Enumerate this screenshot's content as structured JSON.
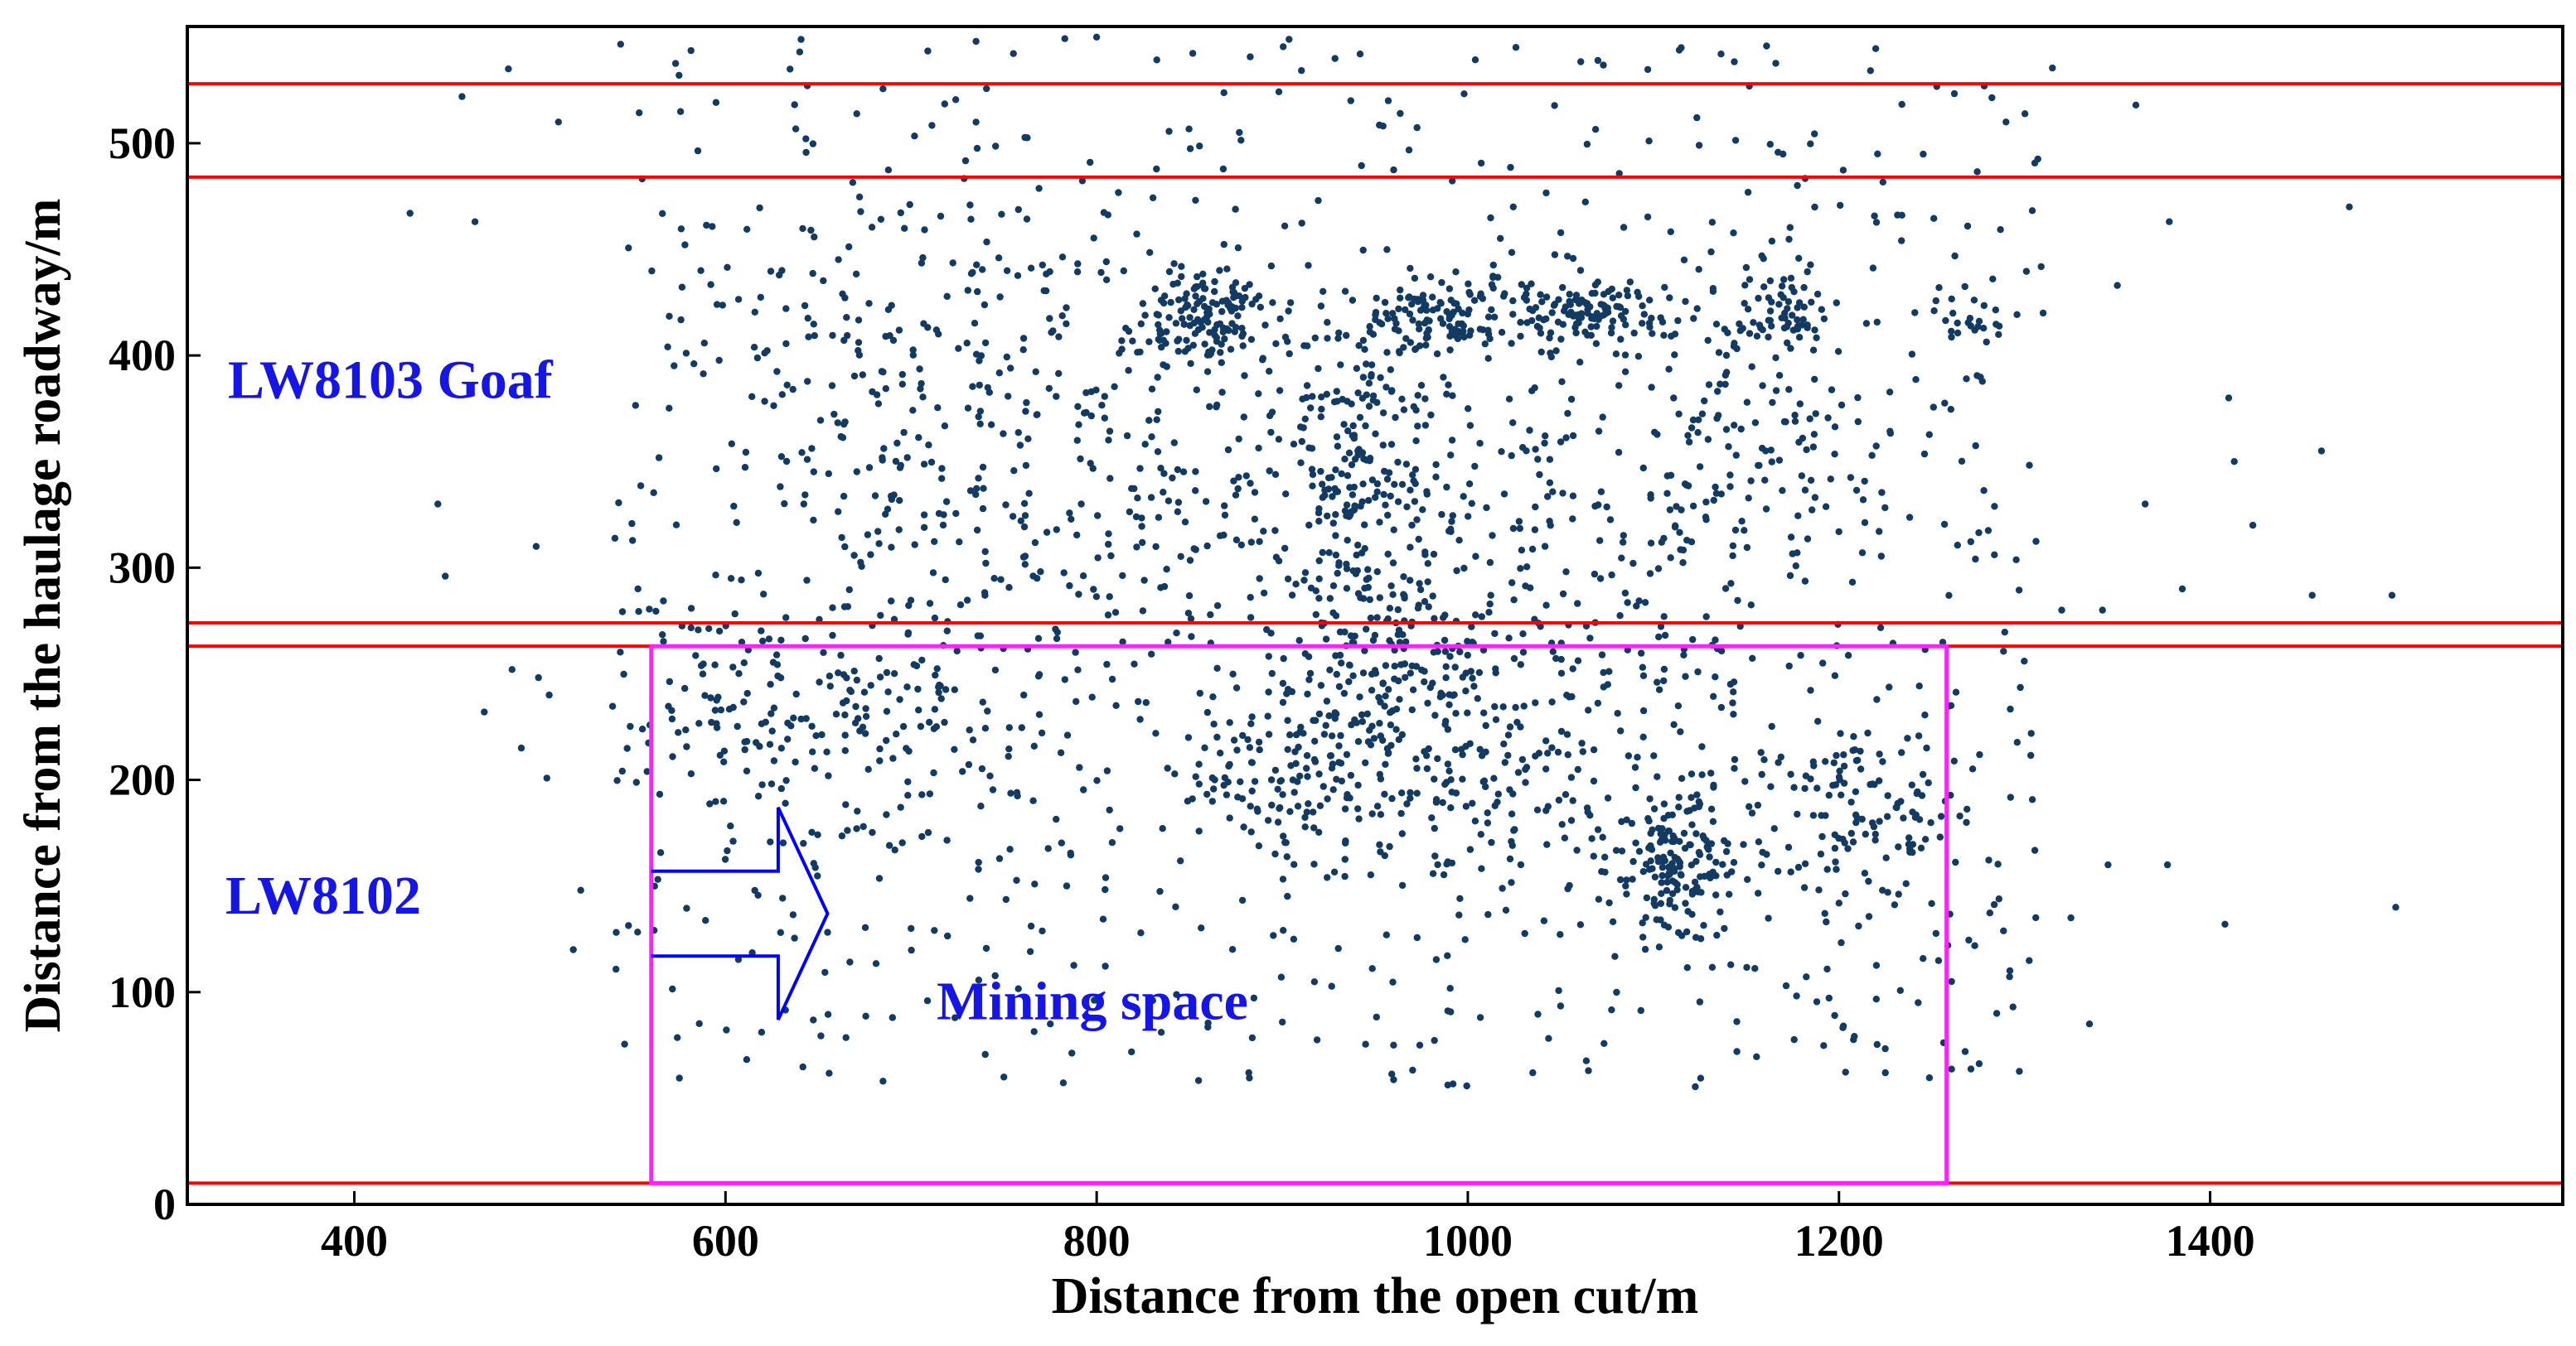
{
  "chart_data": {
    "type": "scatter",
    "title": "",
    "xlabel": "Distance from the open cut/m",
    "ylabel": "Distance from the haulage roadway/m",
    "xlim": [
      310,
      1590
    ],
    "ylim": [
      0,
      555
    ],
    "x_ticks": [
      400,
      600,
      800,
      1000,
      1200,
      1400
    ],
    "y_ticks": [
      0,
      100,
      200,
      300,
      400,
      500
    ],
    "x_tick_labels": [
      "400",
      "600",
      "800",
      "1000",
      "1200",
      "1400"
    ],
    "y_tick_labels": [
      "0",
      "100",
      "200",
      "300",
      "400",
      "500"
    ],
    "grid": false,
    "point_color": "#123a63",
    "boundary_color": "#ff0000",
    "boundary_lines_y": [
      10,
      263,
      274,
      484,
      528
    ],
    "mining_space": {
      "label": "Mining space",
      "x_range": [
        560,
        1258
      ],
      "y_range": [
        10,
        263
      ],
      "color": "#ff22ff"
    },
    "advance_arrow": {
      "from_x": 560,
      "to_x": 655,
      "y_low": 117,
      "y_high": 157,
      "y_center": 137,
      "label": "advance-direction",
      "color": "#0000ff"
    },
    "annotations": [
      {
        "text": "LW8103 Goaf",
        "x": 375,
        "y": 380
      },
      {
        "text": "LW8102",
        "x": 370,
        "y": 137
      }
    ],
    "clusters": [
      {
        "cx": 860,
        "cy": 420,
        "sx": 18,
        "sy": 12,
        "n": 140
      },
      {
        "cx": 985,
        "cy": 420,
        "sx": 25,
        "sy": 8,
        "n": 110
      },
      {
        "cx": 1065,
        "cy": 420,
        "sx": 22,
        "sy": 8,
        "n": 110
      },
      {
        "cx": 1170,
        "cy": 418,
        "sx": 12,
        "sy": 12,
        "n": 60
      },
      {
        "cx": 1270,
        "cy": 418,
        "sx": 10,
        "sy": 6,
        "n": 25
      },
      {
        "cx": 1110,
        "cy": 160,
        "sx": 18,
        "sy": 18,
        "n": 160
      },
      {
        "cx": 1215,
        "cy": 185,
        "sx": 28,
        "sy": 25,
        "n": 110
      },
      {
        "cx": 900,
        "cy": 195,
        "sx": 32,
        "sy": 22,
        "n": 110
      },
      {
        "cx": 955,
        "cy": 240,
        "sx": 28,
        "sy": 30,
        "n": 130
      },
      {
        "cx": 940,
        "cy": 320,
        "sx": 22,
        "sy": 45,
        "n": 120
      },
      {
        "cx": 1150,
        "cy": 350,
        "sx": 40,
        "sy": 40,
        "n": 120
      },
      {
        "cx": 700,
        "cy": 400,
        "sx": 60,
        "sy": 40,
        "n": 140
      },
      {
        "cx": 620,
        "cy": 230,
        "sx": 40,
        "sy": 30,
        "n": 100
      },
      {
        "cx": 700,
        "cy": 240,
        "sx": 35,
        "sy": 30,
        "n": 80
      },
      {
        "cx": 950,
        "cy": 380,
        "sx": 30,
        "sy": 35,
        "n": 100
      },
      {
        "cx": 820,
        "cy": 330,
        "sx": 70,
        "sy": 45,
        "n": 140
      },
      {
        "cx": 1040,
        "cy": 300,
        "sx": 60,
        "sy": 55,
        "n": 160
      },
      {
        "cx": 1020,
        "cy": 210,
        "sx": 50,
        "sy": 35,
        "n": 130
      }
    ],
    "background_scatter": {
      "x_range": [
        540,
        1310
      ],
      "y_range": [
        55,
        470
      ],
      "n": 900
    },
    "sparse_outliers": [
      {
        "x": 430,
        "y": 467
      },
      {
        "x": 445,
        "y": 330
      },
      {
        "x": 449,
        "y": 296
      },
      {
        "x": 465,
        "y": 463
      },
      {
        "x": 483,
        "y": 535
      },
      {
        "x": 458,
        "y": 522
      },
      {
        "x": 470,
        "y": 232
      },
      {
        "x": 485,
        "y": 252
      },
      {
        "x": 490,
        "y": 215
      },
      {
        "x": 510,
        "y": 510
      },
      {
        "x": 518,
        "y": 120
      },
      {
        "x": 522,
        "y": 148
      },
      {
        "x": 498,
        "y": 310
      },
      {
        "x": 505,
        "y": 240
      },
      {
        "x": 1360,
        "y": 518
      },
      {
        "x": 1378,
        "y": 463
      },
      {
        "x": 1410,
        "y": 380
      },
      {
        "x": 1423,
        "y": 320
      },
      {
        "x": 1413,
        "y": 350
      },
      {
        "x": 1460,
        "y": 355
      },
      {
        "x": 1475,
        "y": 470
      },
      {
        "x": 1498,
        "y": 287
      },
      {
        "x": 1500,
        "y": 140
      },
      {
        "x": 1455,
        "y": 287
      },
      {
        "x": 1408,
        "y": 132
      },
      {
        "x": 1377,
        "y": 160
      },
      {
        "x": 1365,
        "y": 330
      },
      {
        "x": 1350,
        "y": 433
      },
      {
        "x": 1342,
        "y": 280
      },
      {
        "x": 1335,
        "y": 85
      },
      {
        "x": 1320,
        "y": 280
      },
      {
        "x": 1385,
        "y": 290
      },
      {
        "x": 1290,
        "y": 510
      },
      {
        "x": 1310,
        "y": 420
      },
      {
        "x": 1325,
        "y": 135
      },
      {
        "x": 1345,
        "y": 160
      },
      {
        "x": 735,
        "y": 548
      },
      {
        "x": 800,
        "y": 550
      },
      {
        "x": 1115,
        "y": 545
      },
      {
        "x": 640,
        "y": 543
      },
      {
        "x": 700,
        "y": 130
      },
      {
        "x": 690,
        "y": 88
      },
      {
        "x": 750,
        "y": 60
      },
      {
        "x": 775,
        "y": 85
      },
      {
        "x": 882,
        "y": 62
      },
      {
        "x": 960,
        "y": 75
      },
      {
        "x": 1035,
        "y": 62
      },
      {
        "x": 1065,
        "y": 63
      },
      {
        "x": 1145,
        "y": 72
      },
      {
        "x": 1225,
        "y": 62
      },
      {
        "x": 1268,
        "y": 72
      },
      {
        "x": 1285,
        "y": 90
      }
    ],
    "seed": 8103
  }
}
